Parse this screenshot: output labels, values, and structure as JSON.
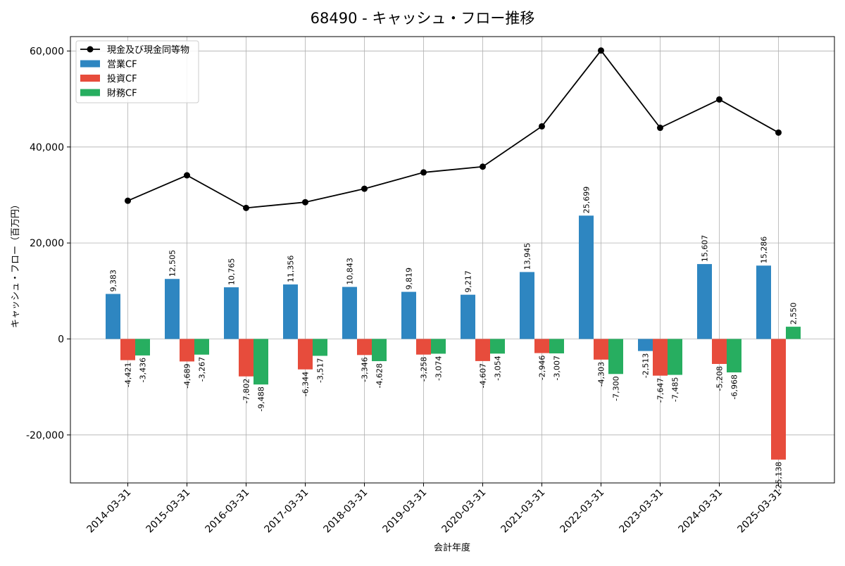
{
  "chart_data": {
    "type": "bar",
    "title": "68490 - キャッシュ・フロー推移",
    "xlabel": "会計年度",
    "ylabel": "キャッシュ・フロー（百万円）",
    "ylim": [
      -30000,
      63000
    ],
    "yticks": [
      -20000,
      0,
      20000,
      40000,
      60000
    ],
    "ytick_labels": [
      "-20,000",
      "0",
      "20,000",
      "40,000",
      "60,000"
    ],
    "grid": true,
    "legend_position": "top-left",
    "categories": [
      "2014-03-31",
      "2015-03-31",
      "2016-03-31",
      "2017-03-31",
      "2018-03-31",
      "2019-03-31",
      "2020-03-31",
      "2021-03-31",
      "2022-03-31",
      "2023-03-31",
      "2024-03-31",
      "2025-03-31"
    ],
    "series": [
      {
        "name": "営業CF",
        "kind": "bar",
        "color": "#2e86c1",
        "values": [
          9383,
          12505,
          10765,
          11356,
          10843,
          9819,
          9217,
          13945,
          25699,
          -2513,
          15607,
          15286
        ],
        "labels": [
          "9,383",
          "12,505",
          "10,765",
          "11,356",
          "10,843",
          "9,819",
          "9,217",
          "13,945",
          "25,699",
          "-2,513",
          "15,607",
          "15,286"
        ]
      },
      {
        "name": "投資CF",
        "kind": "bar",
        "color": "#e74c3c",
        "values": [
          -4421,
          -4689,
          -7802,
          -6344,
          -3346,
          -3258,
          -4607,
          -2946,
          -4303,
          -7647,
          -5208,
          -25138
        ],
        "labels": [
          "-4,421",
          "-4,689",
          "-7,802",
          "-6,344",
          "-3,346",
          "-3,258",
          "-4,607",
          "-2,946",
          "-4,303",
          "-7,647",
          "-5,208",
          "-25,138"
        ]
      },
      {
        "name": "財務CF",
        "kind": "bar",
        "color": "#27ae60",
        "values": [
          -3436,
          -3267,
          -9488,
          -3517,
          -4628,
          -3074,
          -3054,
          -3007,
          -7300,
          -7485,
          -6968,
          2550
        ],
        "labels": [
          "-3,436",
          "-3,267",
          "-9,488",
          "-3,517",
          "-4,628",
          "-3,074",
          "-3,054",
          "-3,007",
          "-7,300",
          "-7,485",
          "-6,968",
          "2,550"
        ]
      },
      {
        "name": "現金及び現金同等物",
        "kind": "line",
        "color": "#000000",
        "values": [
          28800,
          34100,
          27300,
          28500,
          31300,
          34700,
          35900,
          44300,
          60100,
          44000,
          49900,
          43000
        ]
      }
    ]
  }
}
